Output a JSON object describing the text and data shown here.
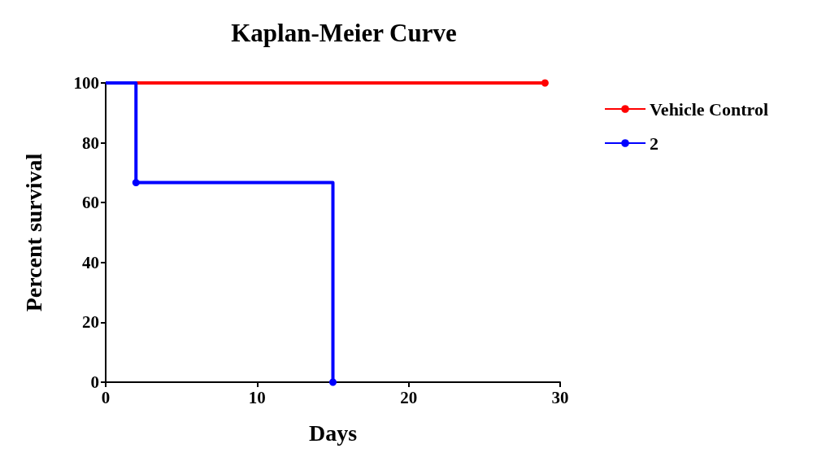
{
  "chart_data": {
    "type": "step",
    "title": "Kaplan-Meier Curve",
    "xlabel": "Days",
    "ylabel": "Percent survival",
    "series": [
      {
        "name": "Vehicle Control",
        "color": "#ff0000",
        "x": [
          0,
          29
        ],
        "values": [
          100,
          100
        ]
      },
      {
        "name": "2",
        "color": "#0000ff",
        "x": [
          0,
          2,
          15
        ],
        "values": [
          100,
          66.7,
          0
        ]
      }
    ],
    "xlim": [
      0,
      30
    ],
    "xticks": [
      0,
      10,
      20,
      30
    ],
    "ylim": [
      0,
      100
    ],
    "yticks": [
      0,
      20,
      40,
      60,
      80,
      100
    ],
    "grid": false,
    "legend": "right",
    "marker": "circle",
    "line_style": "solid"
  }
}
